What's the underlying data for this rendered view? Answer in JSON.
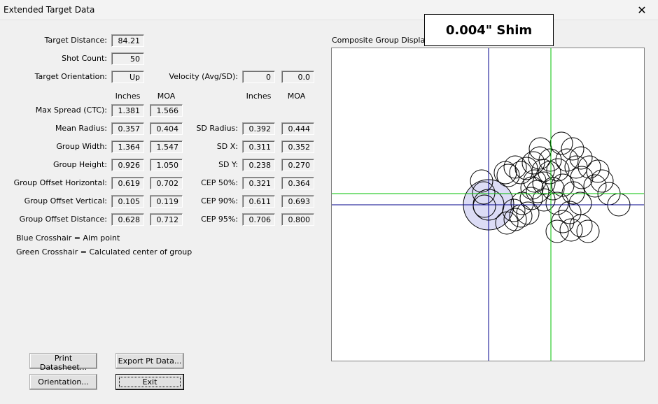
{
  "window": {
    "title": "Extended Target Data",
    "close_icon": "close-icon"
  },
  "fields": {
    "target_distance": {
      "label": "Target Distance:",
      "value": "84.21"
    },
    "shot_count": {
      "label": "Shot Count:",
      "value": "50"
    },
    "target_orientation": {
      "label": "Target Orientation:",
      "value": "Up"
    },
    "velocity": {
      "label": "Velocity (Avg/SD):",
      "avg": "0",
      "sd": "0.0"
    }
  },
  "headers": {
    "inches": "Inches",
    "moa": "MOA"
  },
  "left_stats": [
    {
      "label": "Max Spread (CTC):",
      "inches": "1.381",
      "moa": "1.566"
    },
    {
      "label": "Mean Radius:",
      "inches": "0.357",
      "moa": "0.404"
    },
    {
      "label": "Group Width:",
      "inches": "1.364",
      "moa": "1.547"
    },
    {
      "label": "Group Height:",
      "inches": "0.926",
      "moa": "1.050"
    },
    {
      "label": "Group Offset Horizontal:",
      "inches": "0.619",
      "moa": "0.702"
    },
    {
      "label": "Group Offset Vertical:",
      "inches": "0.105",
      "moa": "0.119"
    },
    {
      "label": "Group Offset Distance:",
      "inches": "0.628",
      "moa": "0.712"
    }
  ],
  "right_stats": [
    {
      "label": "SD Radius:",
      "inches": "0.392",
      "moa": "0.444"
    },
    {
      "label": "SD X:",
      "inches": "0.311",
      "moa": "0.352"
    },
    {
      "label": "SD Y:",
      "inches": "0.238",
      "moa": "0.270"
    },
    {
      "label": "CEP 50%:",
      "inches": "0.321",
      "moa": "0.364"
    },
    {
      "label": "CEP 90%:",
      "inches": "0.611",
      "moa": "0.693"
    },
    {
      "label": "CEP 95%:",
      "inches": "0.706",
      "moa": "0.800"
    }
  ],
  "legend": {
    "blue": "Blue Crosshair = Aim point",
    "green": "Green Crosshair = Calculated center of group"
  },
  "display": {
    "label": "Composite Group Display",
    "shim_label": "0.004\" Shim",
    "aim_color": "#00008b",
    "center_color": "#00c000",
    "hole_color": "#000000",
    "highlight_color": "#dcdcf5"
  },
  "buttons": {
    "print_datasheet": "Print Datasheet...",
    "export_pt_data": "Export Pt Data...",
    "orientation": "Orientation...",
    "exit": "Exit"
  }
}
